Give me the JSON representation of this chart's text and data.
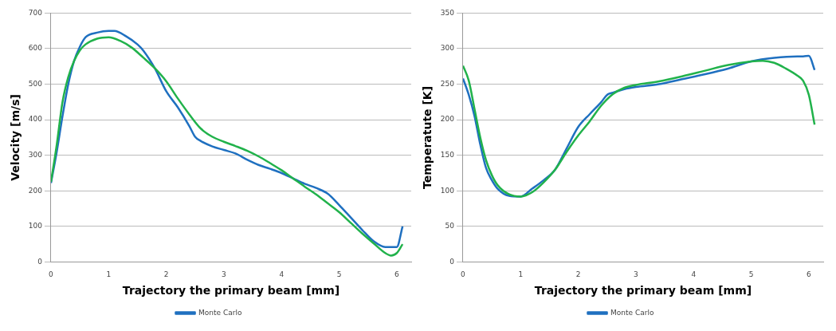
{
  "chart_data": [
    {
      "type": "line",
      "xlabel": "Trajectory the primary beam [mm]",
      "ylabel": "Velocity [m/s]",
      "xlim": [
        0,
        6.25
      ],
      "xticks": [
        0,
        1,
        2,
        3,
        4,
        5,
        6
      ],
      "ylim": [
        0,
        700
      ],
      "yticks": [
        0,
        100,
        200,
        300,
        400,
        500,
        600,
        700
      ],
      "grid": "y",
      "legend": "bottom",
      "series": [
        {
          "color": "#21b24b",
          "x": [
            0,
            0.1,
            0.2,
            0.3,
            0.4,
            0.5,
            0.6,
            0.8,
            1.0,
            1.2,
            1.4,
            1.6,
            1.8,
            2.0,
            2.2,
            2.4,
            2.6,
            2.8,
            3.0,
            3.2,
            3.4,
            3.6,
            3.8,
            4.0,
            4.2,
            4.4,
            4.6,
            4.8,
            5.0,
            5.2,
            5.4,
            5.6,
            5.8,
            5.9,
            6.0,
            6.1
          ],
          "values": [
            225,
            330,
            450,
            520,
            565,
            595,
            612,
            628,
            632,
            622,
            603,
            575,
            545,
            508,
            460,
            415,
            375,
            352,
            338,
            326,
            313,
            297,
            278,
            258,
            235,
            212,
            190,
            165,
            140,
            110,
            80,
            52,
            25,
            18,
            25,
            50
          ]
        },
        {
          "name": "Monte Carlo",
          "color": "#1f70c0",
          "x": [
            0,
            0.1,
            0.2,
            0.3,
            0.4,
            0.5,
            0.6,
            0.8,
            1.0,
            1.1,
            1.3,
            1.5,
            1.6,
            1.8,
            2.0,
            2.2,
            2.4,
            2.5,
            2.6,
            2.8,
            3.0,
            3.2,
            3.4,
            3.6,
            3.8,
            4.0,
            4.2,
            4.4,
            4.6,
            4.8,
            5.0,
            5.2,
            5.4,
            5.6,
            5.8,
            6.0,
            6.1
          ],
          "values": [
            222,
            310,
            410,
            500,
            565,
            605,
            632,
            645,
            650,
            650,
            635,
            612,
            595,
            545,
            480,
            435,
            382,
            352,
            340,
            325,
            315,
            305,
            288,
            273,
            262,
            250,
            235,
            220,
            208,
            192,
            160,
            125,
            90,
            58,
            42,
            42,
            100
          ]
        }
      ]
    },
    {
      "type": "line",
      "xlabel": "Trajectory the primary beam [mm]",
      "ylabel": "Temperatute [K]",
      "xlim": [
        0,
        6.25
      ],
      "xticks": [
        0,
        1,
        2,
        3,
        4,
        5,
        6
      ],
      "ylim": [
        0,
        350
      ],
      "yticks": [
        0,
        50,
        100,
        150,
        200,
        250,
        300,
        350
      ],
      "grid": "y",
      "legend": "bottom",
      "series": [
        {
          "color": "#21b24b",
          "x": [
            0,
            0.1,
            0.2,
            0.3,
            0.4,
            0.5,
            0.6,
            0.8,
            1.0,
            1.2,
            1.4,
            1.6,
            1.8,
            2.0,
            2.2,
            2.4,
            2.6,
            2.8,
            3.0,
            3.4,
            3.8,
            4.2,
            4.6,
            5.0,
            5.2,
            5.4,
            5.6,
            5.8,
            5.9,
            6.0,
            6.1
          ],
          "values": [
            276,
            255,
            215,
            175,
            143,
            122,
            108,
            95,
            92,
            98,
            112,
            130,
            155,
            178,
            198,
            220,
            236,
            245,
            249,
            254,
            261,
            269,
            277,
            282,
            283,
            280,
            272,
            262,
            255,
            235,
            193
          ]
        },
        {
          "name": "Monte Carlo",
          "color": "#1f70c0",
          "x": [
            0,
            0.1,
            0.2,
            0.3,
            0.4,
            0.5,
            0.6,
            0.8,
            1.0,
            1.2,
            1.4,
            1.6,
            1.8,
            2.0,
            2.2,
            2.4,
            2.5,
            2.6,
            2.8,
            3.0,
            3.4,
            3.8,
            4.2,
            4.6,
            5.0,
            5.4,
            5.8,
            5.9,
            6.0,
            6.1
          ],
          "values": [
            258,
            235,
            205,
            165,
            132,
            115,
            103,
            93,
            92,
            103,
            115,
            130,
            160,
            190,
            208,
            225,
            235,
            238,
            243,
            246,
            250,
            257,
            264,
            272,
            282,
            287,
            289,
            289,
            290,
            270
          ]
        }
      ]
    }
  ]
}
